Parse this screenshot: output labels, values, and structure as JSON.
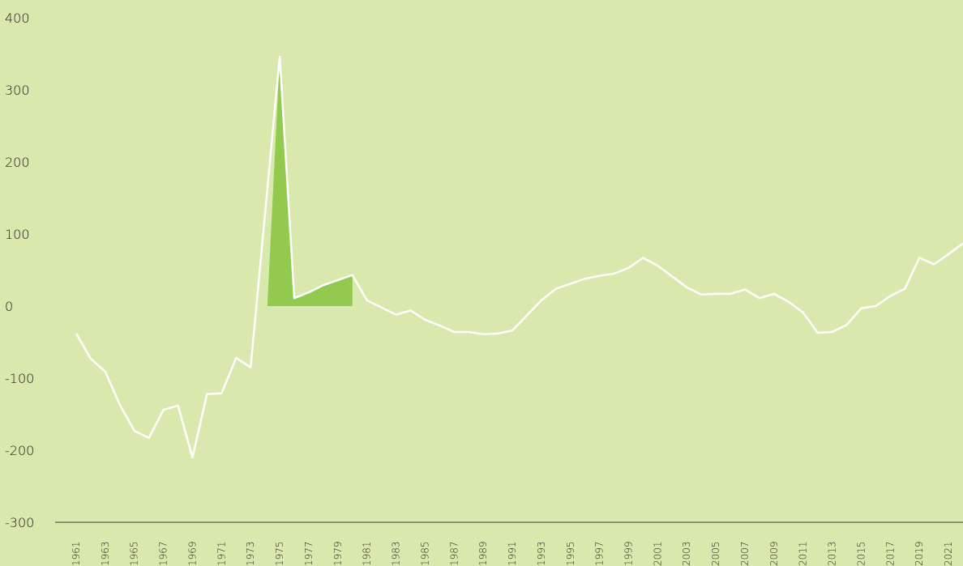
{
  "chart_data": {
    "type": "line",
    "categories": [
      "1961",
      null,
      "1963",
      null,
      "1965",
      null,
      "1967",
      null,
      "1969",
      null,
      "1971",
      null,
      "1973",
      null,
      "1975",
      null,
      "1977",
      null,
      "1979",
      null,
      "1981",
      null,
      "1983",
      null,
      "1985",
      null,
      "1987",
      null,
      "1989",
      null,
      "1991",
      null,
      "1993",
      null,
      "1995",
      null,
      "1997",
      null,
      "1999",
      null,
      "2001",
      null,
      "2003",
      null,
      "2005",
      null,
      "2007",
      null,
      "2009",
      null,
      "2011",
      null,
      "2013",
      null,
      "2015",
      null,
      "2017",
      null,
      "2019",
      null,
      "2021",
      null
    ],
    "series": [
      {
        "color": "#ffffff",
        "values": [
          -38,
          -73,
          -91,
          -137,
          -173,
          -183,
          -144,
          -138,
          -210,
          -122,
          -121,
          -72,
          -85,
          130,
          346,
          11,
          19,
          29,
          36,
          43,
          8,
          -2,
          -12,
          -6,
          -19,
          -27,
          -36,
          -36,
          -39,
          -38,
          -34,
          -13,
          8,
          24,
          31,
          38,
          42,
          45,
          53,
          67,
          56,
          41,
          26,
          16,
          17,
          17,
          23,
          11,
          17,
          6,
          -9,
          -37,
          -36,
          -26,
          -3,
          0,
          14,
          24,
          67,
          58,
          72,
          87
        ]
      }
    ],
    "highlight": {
      "color": "#92c94f",
      "from": 14,
      "to": 19
    },
    "ylim": [
      -300,
      400
    ],
    "yticks": [
      -300,
      -200,
      -100,
      0,
      100,
      200,
      300,
      400
    ],
    "axis_color": "#3a3a3a"
  }
}
